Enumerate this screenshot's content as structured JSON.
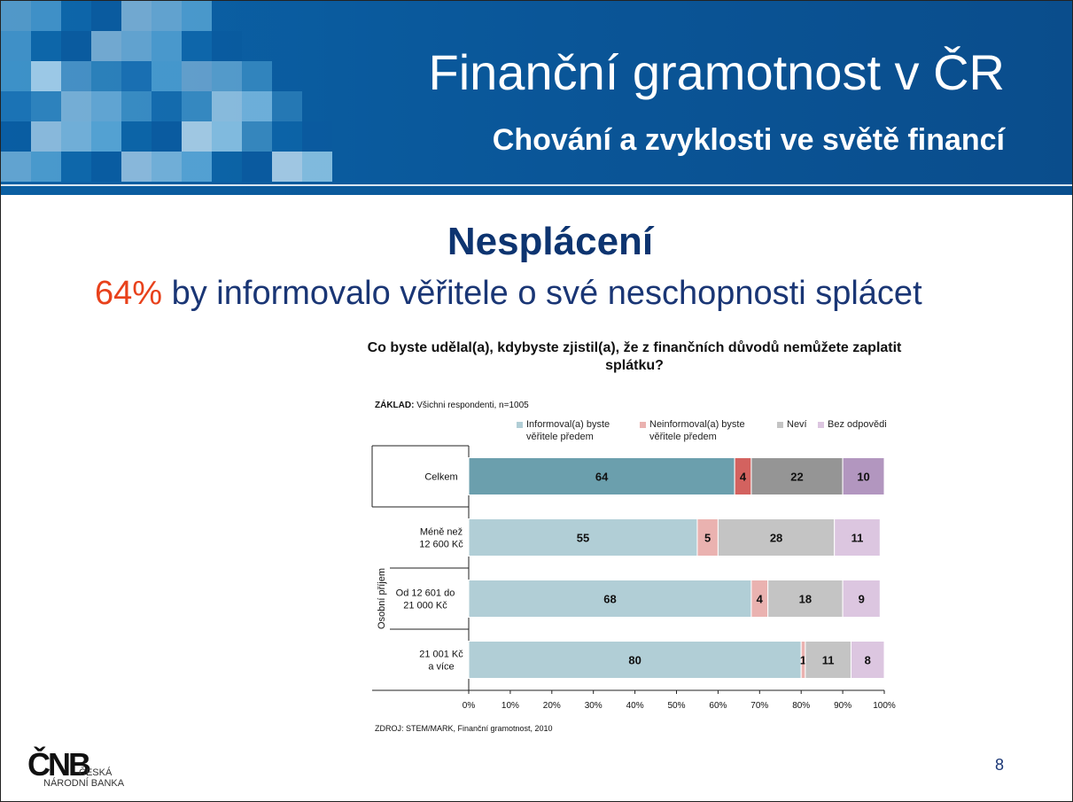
{
  "header": {
    "title": "Finanční gramotnost v ČR",
    "subtitle": "Chování a zvyklosti ve světě financí"
  },
  "slide": {
    "heading": "Nesplácení",
    "lead_pct": "64%",
    "lead_text": " by informovalo  věřitele o své neschopnosti splácet",
    "page_number": "8"
  },
  "chart_data": {
    "type": "bar",
    "orientation": "horizontal-stacked-100",
    "title": "Co byste udělal(a), kdybyste zjistil(a), že z finančních důvodů nemůžete zaplatit splátku?",
    "base_label": "ZÁKLAD:",
    "base_text": " Všichni respondenti, n=1005",
    "group_label": "Osobní příjem",
    "categories": [
      "Celkem",
      "Méně než 12 600 Kč",
      "Od 12 601 do 21 000 Kč",
      "21 001 Kč a více"
    ],
    "series": [
      {
        "name": "Informoval(a) byste věřitele předem",
        "values": [
          64,
          55,
          68,
          80
        ]
      },
      {
        "name": "Neinformoval(a) byste věřitele předem",
        "values": [
          4,
          5,
          4,
          1
        ]
      },
      {
        "name": "Neví",
        "values": [
          22,
          28,
          18,
          11
        ]
      },
      {
        "name": "Bez odpovědi",
        "values": [
          10,
          11,
          9,
          8
        ]
      }
    ],
    "colors_highlight": [
      "#6b9fad",
      "#d3625f",
      "#959595",
      "#b296bf"
    ],
    "colors_normal": [
      "#b1ced6",
      "#eab2b0",
      "#c4c4c4",
      "#dcc6e0"
    ],
    "xticks": [
      "0%",
      "10%",
      "20%",
      "30%",
      "40%",
      "50%",
      "60%",
      "70%",
      "80%",
      "90%",
      "100%"
    ],
    "xlim": [
      0,
      100
    ],
    "source": "ZDROJ: STEM/MARK, Finanční gramotnost, 2010"
  },
  "logo": {
    "mark": "ČNB",
    "line1": "ČESKÁ",
    "line2": "NÁRODNÍ BANKA"
  }
}
